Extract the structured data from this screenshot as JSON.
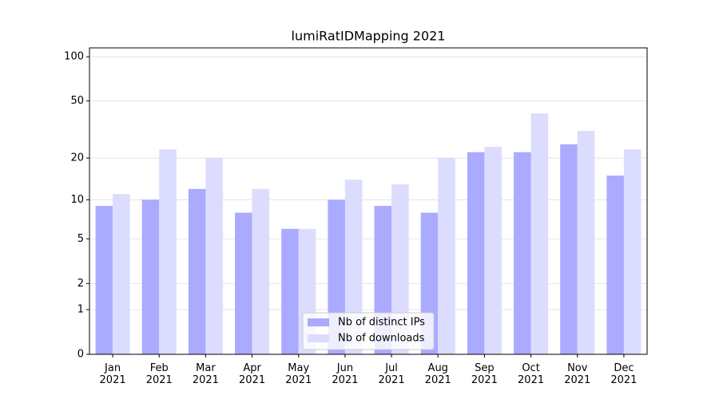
{
  "chart_data": {
    "type": "bar",
    "title": "lumiRatIDMapping 2021",
    "categories": [
      "Jan\n2021",
      "Feb\n2021",
      "Mar\n2021",
      "Apr\n2021",
      "May\n2021",
      "Jun\n2021",
      "Jul\n2021",
      "Aug\n2021",
      "Sep\n2021",
      "Oct\n2021",
      "Nov\n2021",
      "Dec\n2021"
    ],
    "series": [
      {
        "name": "Nb of distinct IPs",
        "color": "#aaaaff",
        "values": [
          9,
          10,
          12,
          8,
          6,
          10,
          9,
          8,
          22,
          22,
          25,
          15
        ]
      },
      {
        "name": "Nb of downloads",
        "color": "#dcdcff",
        "values": [
          11,
          23,
          20,
          12,
          6,
          14,
          13,
          20,
          24,
          41,
          31,
          23
        ]
      }
    ],
    "yscale": "log1p",
    "ylim": [
      0,
      115
    ],
    "yticks": [
      0,
      1,
      2,
      5,
      10,
      20,
      50,
      100
    ],
    "grid": true,
    "legend": "lower center"
  }
}
